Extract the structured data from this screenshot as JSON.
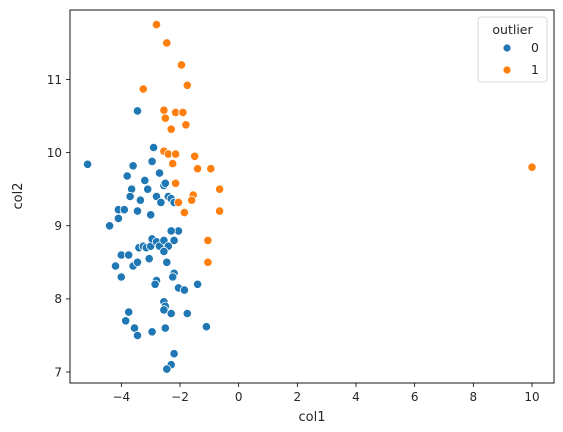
{
  "chart_data": {
    "type": "scatter",
    "xlabel": "col1",
    "ylabel": "col2",
    "xlim": [
      -5.75,
      10.75
    ],
    "ylim": [
      6.85,
      11.95
    ],
    "xticks": [
      -4,
      -2,
      0,
      2,
      4,
      6,
      8,
      10
    ],
    "yticks": [
      7,
      8,
      9,
      10,
      11
    ],
    "grid": false,
    "legend": {
      "title": "outlier",
      "placement": "top-right"
    },
    "series": [
      {
        "name": "0",
        "color": "#1f77b4",
        "points": [
          [
            -5.15,
            9.84
          ],
          [
            -3.45,
            10.57
          ],
          [
            -4.4,
            9.0
          ],
          [
            -4.1,
            9.22
          ],
          [
            -4.1,
            9.1
          ],
          [
            -3.9,
            9.22
          ],
          [
            -3.8,
            9.68
          ],
          [
            -3.6,
            9.82
          ],
          [
            -3.65,
            9.5
          ],
          [
            -3.7,
            9.4
          ],
          [
            -3.45,
            9.2
          ],
          [
            -3.35,
            9.35
          ],
          [
            -3.2,
            9.62
          ],
          [
            -3.1,
            9.5
          ],
          [
            -3.0,
            9.15
          ],
          [
            -2.9,
            10.07
          ],
          [
            -2.95,
            9.88
          ],
          [
            -2.7,
            9.72
          ],
          [
            -2.55,
            9.55
          ],
          [
            -2.8,
            9.4
          ],
          [
            -2.65,
            9.32
          ],
          [
            -2.5,
            9.58
          ],
          [
            -2.4,
            9.4
          ],
          [
            -2.3,
            9.37
          ],
          [
            -2.2,
            9.32
          ],
          [
            -4.2,
            8.45
          ],
          [
            -4.0,
            8.6
          ],
          [
            -4.0,
            8.3
          ],
          [
            -3.75,
            8.6
          ],
          [
            -3.6,
            8.45
          ],
          [
            -3.4,
            8.7
          ],
          [
            -3.25,
            8.72
          ],
          [
            -3.15,
            8.7
          ],
          [
            -3.0,
            8.72
          ],
          [
            -2.95,
            8.82
          ],
          [
            -2.8,
            8.78
          ],
          [
            -2.7,
            8.72
          ],
          [
            -2.55,
            8.8
          ],
          [
            -2.4,
            8.72
          ],
          [
            -2.55,
            8.65
          ],
          [
            -2.2,
            8.8
          ],
          [
            -2.05,
            8.93
          ],
          [
            -2.3,
            8.93
          ],
          [
            -3.45,
            8.5
          ],
          [
            -3.05,
            8.55
          ],
          [
            -2.45,
            8.5
          ],
          [
            -2.2,
            8.35
          ],
          [
            -2.25,
            8.3
          ],
          [
            -2.8,
            8.25
          ],
          [
            -2.85,
            8.2
          ],
          [
            -2.05,
            8.15
          ],
          [
            -1.85,
            8.12
          ],
          [
            -1.4,
            8.2
          ],
          [
            -3.75,
            7.82
          ],
          [
            -3.85,
            7.7
          ],
          [
            -3.55,
            7.6
          ],
          [
            -3.45,
            7.5
          ],
          [
            -2.95,
            7.55
          ],
          [
            -2.55,
            7.96
          ],
          [
            -2.5,
            7.9
          ],
          [
            -2.55,
            7.85
          ],
          [
            -2.3,
            7.8
          ],
          [
            -1.75,
            7.8
          ],
          [
            -2.5,
            7.6
          ],
          [
            -1.1,
            7.62
          ],
          [
            -2.2,
            7.25
          ],
          [
            -2.3,
            7.1
          ],
          [
            -2.45,
            7.04
          ]
        ]
      },
      {
        "name": "1",
        "color": "#ff7f0e",
        "points": [
          [
            -2.8,
            11.75
          ],
          [
            -2.45,
            11.5
          ],
          [
            -1.95,
            11.2
          ],
          [
            -1.75,
            10.92
          ],
          [
            -3.25,
            10.87
          ],
          [
            -2.55,
            10.58
          ],
          [
            -2.5,
            10.47
          ],
          [
            -2.15,
            10.55
          ],
          [
            -1.9,
            10.55
          ],
          [
            -1.8,
            10.38
          ],
          [
            -2.3,
            10.32
          ],
          [
            -2.55,
            10.02
          ],
          [
            -2.4,
            9.98
          ],
          [
            -2.15,
            9.98
          ],
          [
            -2.25,
            9.85
          ],
          [
            -1.5,
            9.95
          ],
          [
            -1.4,
            9.78
          ],
          [
            -0.95,
            9.78
          ],
          [
            -2.15,
            9.58
          ],
          [
            -1.55,
            9.42
          ],
          [
            -1.6,
            9.35
          ],
          [
            -2.05,
            9.32
          ],
          [
            -0.65,
            9.5
          ],
          [
            -1.85,
            9.18
          ],
          [
            -0.65,
            9.2
          ],
          [
            -1.05,
            8.8
          ],
          [
            -1.05,
            8.5
          ],
          [
            10.0,
            9.8
          ]
        ]
      }
    ]
  }
}
